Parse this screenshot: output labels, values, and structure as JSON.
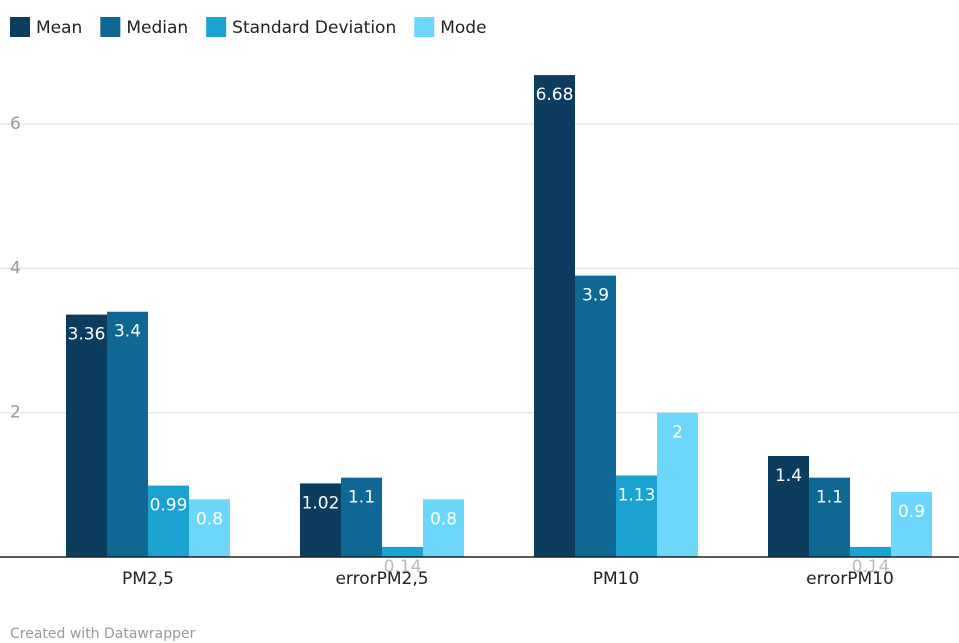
{
  "chart_data": {
    "type": "bar",
    "categories": [
      "PM2,5",
      "errorPM2,5",
      "PM10",
      "errorPM10"
    ],
    "series": [
      {
        "name": "Mean",
        "color": "#0c3c5e",
        "values": [
          3.36,
          1.02,
          6.68,
          1.4
        ]
      },
      {
        "name": "Median",
        "color": "#0f6894",
        "values": [
          3.4,
          1.1,
          3.9,
          1.1
        ]
      },
      {
        "name": "Standard Deviation",
        "color": "#1aa2d0",
        "values": [
          0.99,
          0.14,
          1.13,
          0.14
        ]
      },
      {
        "name": "Mode",
        "color": "#6dd7fb",
        "values": [
          0.8,
          0.8,
          2,
          0.9
        ]
      }
    ],
    "ylim": [
      0,
      7
    ],
    "yticks": [
      2,
      4,
      6
    ],
    "grid": true,
    "legend": "top",
    "footer": "Created with Datawrapper"
  }
}
